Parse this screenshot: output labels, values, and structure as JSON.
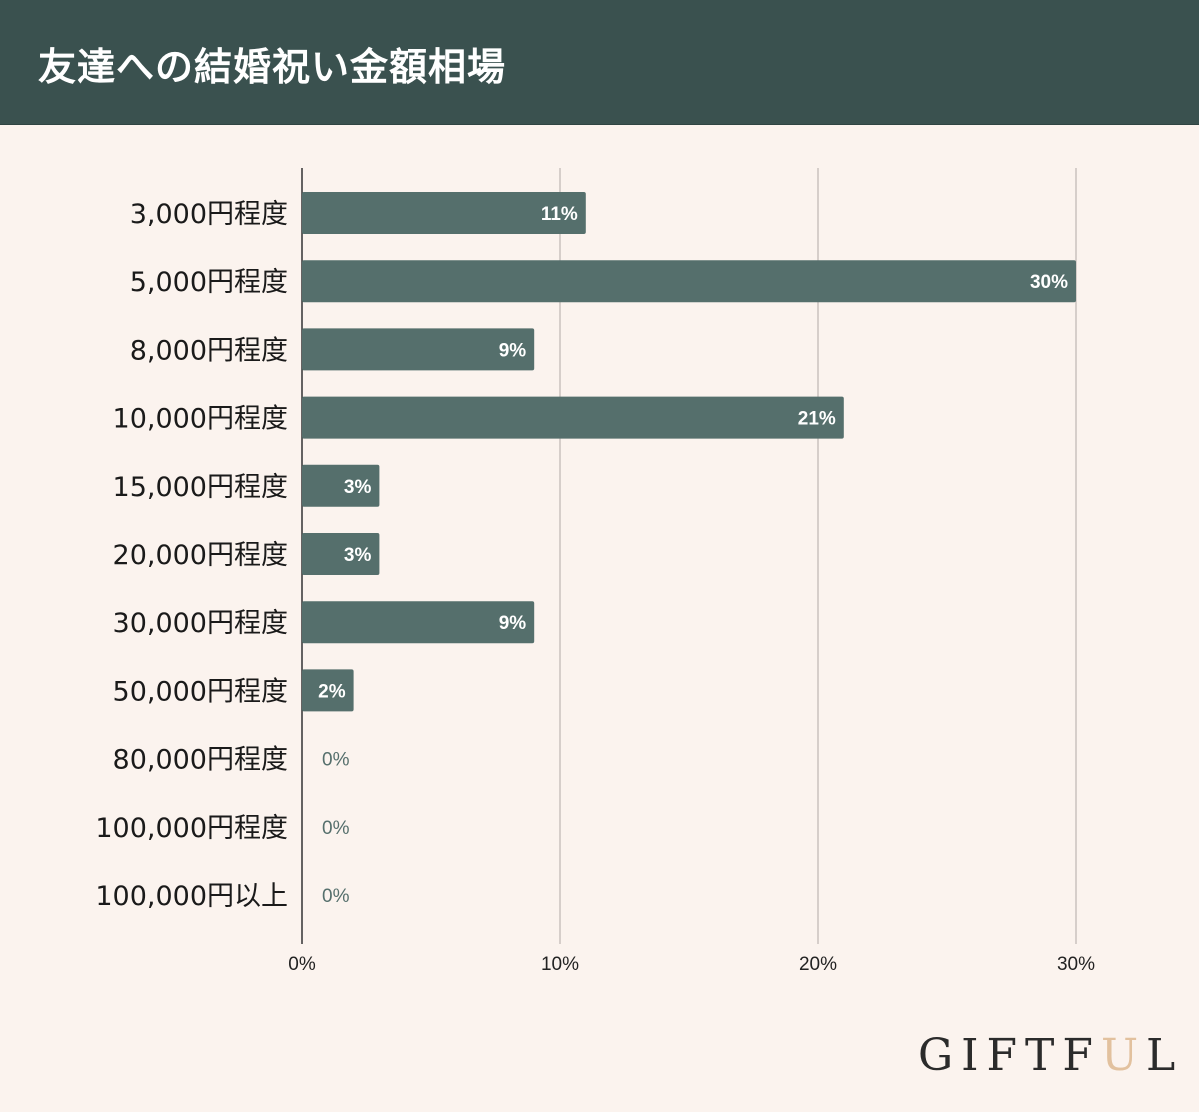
{
  "header": {
    "title": "友達への結婚祝い金額相場"
  },
  "chart_data": {
    "type": "bar",
    "orientation": "horizontal",
    "title": "友達への結婚祝い金額相場",
    "categories": [
      "3,000円程度",
      "5,000円程度",
      "8,000円程度",
      "10,000円程度",
      "15,000円程度",
      "20,000円程度",
      "30,000円程度",
      "50,000円程度",
      "80,000円程度",
      "100,000円程度",
      "100,000円以上"
    ],
    "values": [
      11,
      30,
      9,
      21,
      3,
      3,
      9,
      2,
      0,
      0,
      0
    ],
    "data_labels": [
      "11%",
      "30%",
      "9%",
      "21%",
      "3%",
      "3%",
      "9%",
      "2%",
      "0%",
      "0%",
      "0%"
    ],
    "x_ticks": [
      0,
      10,
      20,
      30
    ],
    "x_tick_labels": [
      "0%",
      "10%",
      "20%",
      "30%"
    ],
    "xlim": [
      0,
      30
    ],
    "grid": true,
    "bar_color": "#556f6c",
    "label_color_inside": "#ffffff",
    "label_color_outside": "#556f6c"
  },
  "logo": {
    "text_before": "GIFTF",
    "accent": "U",
    "text_after": "L"
  }
}
